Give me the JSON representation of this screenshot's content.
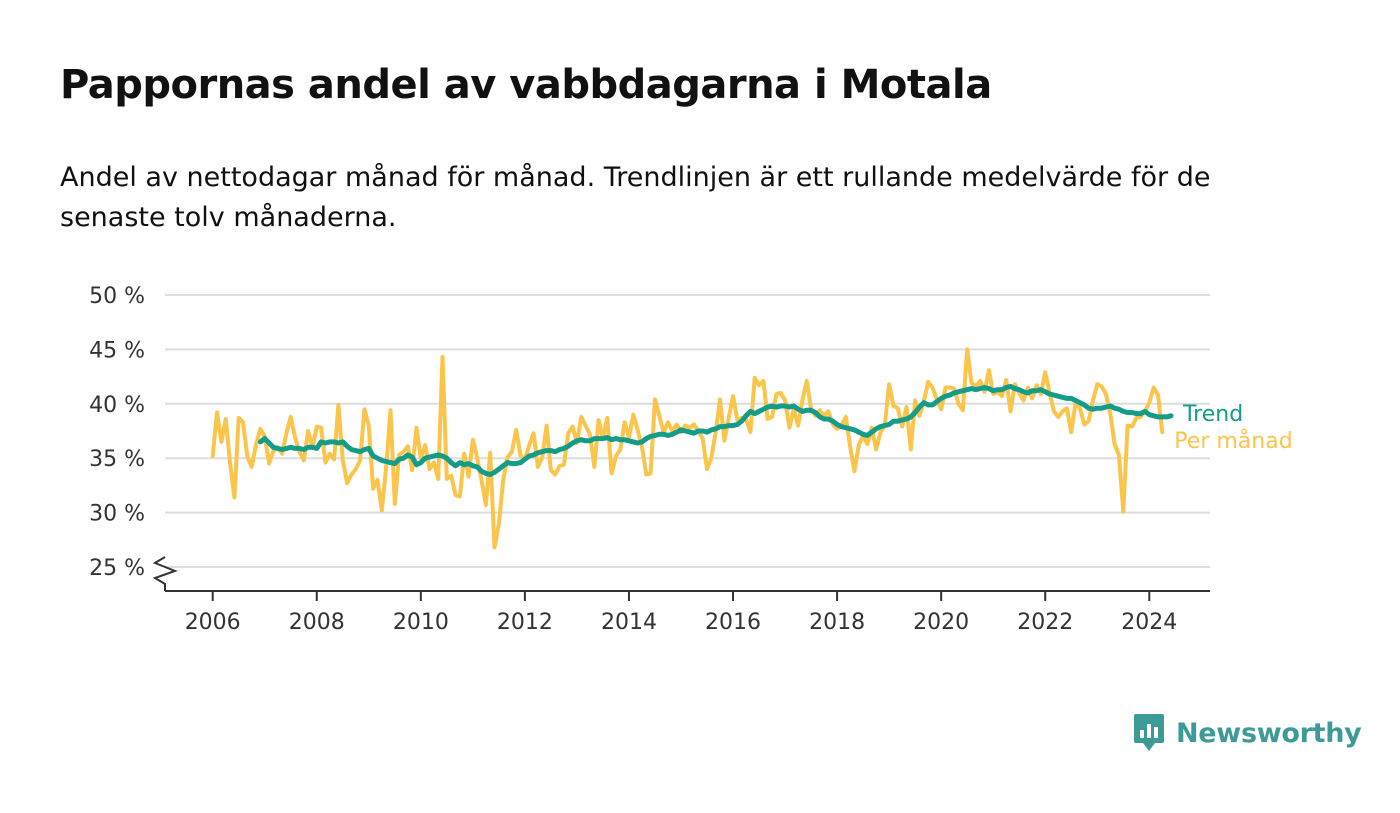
{
  "title": "Pappornas andel av vabbdagarna i Motala",
  "subtitle": "Andel av nettodagar månad för månad. Trendlinjen är ett rullande medelvärde för de senaste tolv månaderna.",
  "brand": {
    "name": "Newsworthy"
  },
  "colors": {
    "monthly": "#fbc44b",
    "trend": "#149c88",
    "grid": "#dddddd",
    "axis": "#333333"
  },
  "chart_data": {
    "type": "line",
    "x_label": "",
    "y_label": "",
    "ylim": [
      25,
      50
    ],
    "yticks": [
      25,
      30,
      35,
      40,
      45,
      50
    ],
    "ytick_labels": [
      "25 %",
      "30 %",
      "35 %",
      "40 %",
      "45 %",
      "50 %"
    ],
    "xticks": [
      "2006",
      "2008",
      "2010",
      "2012",
      "2014",
      "2016",
      "2018",
      "2020",
      "2022",
      "2024"
    ],
    "xlim": [
      "2005-02",
      "2025-03"
    ],
    "y_axis_break": true,
    "grid": true,
    "series": [
      {
        "name": "Per månad",
        "color": "#fbc44b",
        "start": "2006-01",
        "values": [
          35.2,
          39.2,
          36.5,
          38.6,
          34.6,
          31.4,
          38.7,
          38.3,
          35.1,
          34.2,
          36.3,
          37.7,
          37.0,
          34.5,
          35.7,
          36.0,
          35.4,
          37.3,
          38.8,
          36.9,
          35.6,
          34.8,
          37.5,
          36.0,
          37.9,
          37.8,
          34.6,
          35.4,
          34.9,
          39.9,
          34.8,
          32.7,
          33.5,
          34.0,
          34.8,
          39.5,
          38.0,
          32.2,
          33.0,
          30.2,
          34.1,
          39.4,
          30.8,
          35.3,
          35.6,
          36.1,
          33.9,
          37.8,
          35.0,
          36.2,
          34.0,
          34.6,
          33.1,
          44.3,
          33.1,
          33.4,
          31.6,
          31.5,
          35.4,
          33.3,
          36.7,
          35.0,
          33.0,
          30.7,
          35.5,
          26.8,
          29.0,
          33.0,
          35.1,
          35.6,
          37.6,
          35.2,
          34.9,
          36.2,
          37.3,
          34.2,
          35.1,
          38.0,
          33.9,
          33.5,
          34.3,
          34.4,
          37.3,
          37.9,
          36.4,
          38.8,
          38.0,
          37.2,
          34.2,
          38.5,
          36.8,
          38.7,
          33.6,
          35.2,
          35.8,
          38.3,
          36.9,
          39.0,
          37.6,
          36.0,
          33.5,
          33.6,
          40.4,
          38.9,
          37.3,
          38.3,
          37.5,
          38.1,
          37.4,
          38.0,
          37.8,
          38.1,
          37.5,
          36.8,
          34.0,
          35.0,
          37.4,
          40.4,
          36.6,
          38.7,
          40.7,
          38.5,
          38.7,
          38.6,
          37.4,
          42.4,
          41.7,
          42.1,
          38.6,
          38.8,
          40.9,
          41.0,
          40.3,
          37.8,
          39.5,
          38.0,
          40.3,
          42.1,
          39.5,
          38.9,
          39.4,
          38.9,
          39.3,
          38.1,
          37.7,
          38.0,
          38.8,
          36.1,
          33.8,
          36.2,
          37.1,
          36.3,
          37.8,
          35.8,
          37.4,
          38.0,
          41.8,
          39.8,
          39.6,
          37.9,
          39.7,
          35.8,
          40.3,
          38.9,
          40.2,
          42.0,
          41.5,
          40.4,
          39.5,
          41.5,
          41.5,
          41.4,
          40.0,
          39.4,
          45.0,
          41.9,
          41.6,
          42.1,
          41.1,
          43.1,
          40.9,
          41.1,
          40.7,
          42.2,
          39.3,
          41.8,
          41.0,
          40.3,
          41.5,
          40.5,
          41.7,
          40.9,
          42.9,
          41.0,
          39.3,
          38.8,
          39.3,
          39.6,
          37.4,
          40.1,
          39.6,
          38.1,
          38.4,
          40.3,
          41.8,
          41.6,
          40.9,
          39.1,
          36.3,
          35.3,
          30.1,
          38.0,
          37.9,
          38.7,
          38.8,
          39.3,
          40.1,
          41.5,
          40.8,
          37.4
        ]
      },
      {
        "name": "Trend",
        "color": "#149c88",
        "start": "2006-12",
        "values": [
          36.5,
          36.8,
          36.4,
          36.0,
          35.9,
          35.8,
          35.9,
          36.0,
          35.9,
          35.9,
          35.8,
          36.0,
          36.0,
          35.9,
          36.5,
          36.4,
          36.5,
          36.5,
          36.4,
          36.5,
          36.1,
          35.8,
          35.7,
          35.6,
          35.8,
          35.9,
          35.2,
          35.0,
          34.8,
          34.7,
          34.6,
          34.5,
          34.9,
          35.0,
          35.3,
          35.1,
          34.4,
          34.6,
          35.0,
          35.1,
          35.2,
          35.3,
          35.2,
          35.0,
          34.6,
          34.3,
          34.6,
          34.4,
          34.5,
          34.3,
          34.2,
          33.8,
          33.6,
          33.5,
          33.7,
          34.0,
          34.3,
          34.6,
          34.5,
          34.5,
          34.6,
          34.9,
          35.2,
          35.3,
          35.5,
          35.6,
          35.7,
          35.7,
          35.6,
          35.8,
          35.9,
          36.1,
          36.4,
          36.6,
          36.7,
          36.6,
          36.6,
          36.8,
          36.8,
          36.8,
          36.9,
          36.7,
          36.8,
          36.7,
          36.7,
          36.6,
          36.5,
          36.4,
          36.5,
          36.8,
          37.0,
          37.1,
          37.2,
          37.2,
          37.1,
          37.2,
          37.4,
          37.6,
          37.5,
          37.4,
          37.3,
          37.5,
          37.5,
          37.4,
          37.6,
          37.7,
          37.9,
          37.9,
          38.0,
          38.0,
          38.1,
          38.4,
          38.9,
          39.3,
          39.1,
          39.3,
          39.5,
          39.7,
          39.8,
          39.7,
          39.8,
          39.8,
          39.7,
          39.8,
          39.5,
          39.3,
          39.4,
          39.4,
          39.2,
          38.8,
          38.6,
          38.6,
          38.4,
          38.1,
          37.9,
          37.8,
          37.7,
          37.6,
          37.4,
          37.2,
          37.1,
          37.4,
          37.7,
          37.9,
          38.0,
          38.1,
          38.4,
          38.4,
          38.5,
          38.6,
          38.8,
          39.2,
          39.7,
          40.1,
          39.9,
          39.9,
          40.2,
          40.5,
          40.7,
          40.8,
          41.0,
          41.1,
          41.2,
          41.3,
          41.4,
          41.3,
          41.4,
          41.5,
          41.4,
          41.2,
          41.3,
          41.3,
          41.5,
          41.6,
          41.4,
          41.3,
          41.1,
          41.0,
          41.2,
          41.2,
          41.3,
          41.1,
          40.9,
          40.8,
          40.7,
          40.6,
          40.5,
          40.5,
          40.3,
          40.1,
          39.9,
          39.6,
          39.5,
          39.6,
          39.6,
          39.7,
          39.8,
          39.6,
          39.5,
          39.3,
          39.2,
          39.2,
          39.1,
          39.1,
          39.3,
          39.0,
          38.9,
          38.8,
          38.8,
          38.8,
          38.9
        ]
      }
    ]
  }
}
